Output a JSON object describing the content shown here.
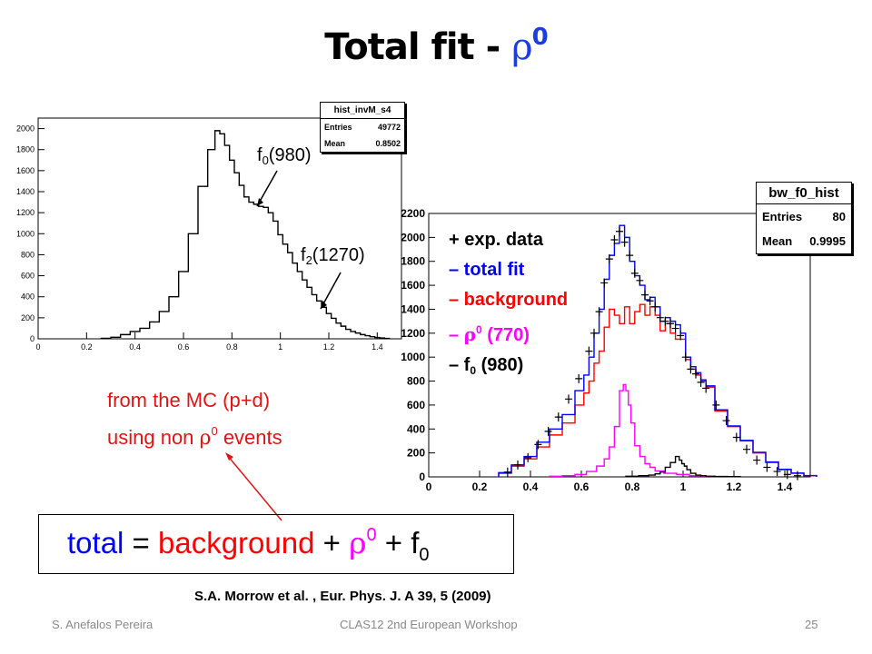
{
  "slide": {
    "title_text": "Total fit - ",
    "title_symbol": "ρ",
    "title_sup": "0",
    "slide_number": "25",
    "footer_left": "S. Anefalos Pereira",
    "footer_center": "CLAS12 2nd European Workshop",
    "citation": "S.A. Morrow et al. , Eur. Phys. J. A 39, 5 (2009)",
    "colors": {
      "title_rho": "#1a3ee0",
      "note_red": "#e01414",
      "total_blue": "#0000ff",
      "background_red": "#ff0000",
      "rho_magenta": "#ff00ff"
    }
  },
  "left_plot": {
    "statbox": {
      "name": "hist_invM_s4",
      "entries_label": "Entries",
      "entries": "49772",
      "mean_label": "Mean",
      "mean": "0.8502"
    },
    "annotations": {
      "f0_base": "f",
      "f0_sub": "0",
      "f0_mass": "(980)",
      "f2_base": "f",
      "f2_sub": "2",
      "f2_mass": "(1270)"
    }
  },
  "right_plot": {
    "statbox": {
      "name": "bw_f0_hist",
      "entries_label": "Entries",
      "entries": "80",
      "mean_label": "Mean",
      "mean": "0.9995"
    },
    "legend": {
      "exp_data": "+ exp. data",
      "total_fit": "– total fit",
      "background": "– background",
      "rho_dash": "– ",
      "rho_symbol": "ρ",
      "rho_sup": "0",
      "rho_mass": " (770)",
      "f0_dash": "– f",
      "f0_sub": "0",
      "f0_mass": " (980)"
    }
  },
  "mc_note": {
    "line1": "from the MC (p+d)",
    "line2_pre": "using non ",
    "line2_symbol": "ρ",
    "line2_sup": "0",
    "line2_post": " events"
  },
  "equation": {
    "total": "total",
    "eq": " = ",
    "background": "background",
    "plus1": " + ",
    "rho": "ρ",
    "rho_sup": "0",
    "plus2": " + f",
    "f0_sub": "0"
  },
  "chart_data": [
    {
      "type": "line",
      "step": true,
      "x_range": [
        0,
        1.5
      ],
      "ylim": [
        0,
        2100
      ],
      "x_ticks": [
        "0",
        "0.2",
        "0.4",
        "0.6",
        "0.8",
        "1",
        "1.2",
        "1.4"
      ],
      "y_ticks": [
        "0",
        "200",
        "400",
        "600",
        "800",
        "1000",
        "1200",
        "1400",
        "1600",
        "1800",
        "2000"
      ],
      "series": [
        {
          "color": "#000000",
          "x": [
            0.28,
            0.32,
            0.36,
            0.4,
            0.44,
            0.48,
            0.52,
            0.56,
            0.6,
            0.64,
            0.68,
            0.72,
            0.74,
            0.76,
            0.78,
            0.8,
            0.82,
            0.84,
            0.86,
            0.88,
            0.9,
            0.92,
            0.94,
            0.96,
            0.98,
            1.0,
            1.02,
            1.04,
            1.06,
            1.08,
            1.1,
            1.12,
            1.14,
            1.16,
            1.18,
            1.2,
            1.22,
            1.24,
            1.26,
            1.28,
            1.3,
            1.32,
            1.34,
            1.36,
            1.38,
            1.4,
            1.42,
            1.44
          ],
          "values": [
            5,
            15,
            40,
            70,
            100,
            160,
            260,
            400,
            640,
            1000,
            1450,
            1800,
            1980,
            1950,
            1840,
            1700,
            1580,
            1460,
            1350,
            1300,
            1280,
            1260,
            1250,
            1200,
            1120,
            990,
            900,
            820,
            720,
            640,
            560,
            490,
            420,
            360,
            300,
            240,
            195,
            150,
            120,
            90,
            70,
            55,
            40,
            30,
            20,
            12,
            8,
            4
          ]
        }
      ]
    },
    {
      "type": "line",
      "step": true,
      "x_range": [
        0,
        1.5
      ],
      "ylim": [
        0,
        2200
      ],
      "x_ticks": [
        "0",
        "0.2",
        "0.4",
        "0.6",
        "0.8",
        "1",
        "1.2",
        "1.4"
      ],
      "y_ticks": [
        "0",
        "200",
        "400",
        "600",
        "800",
        "1000",
        "1200",
        "1400",
        "1600",
        "1800",
        "2000",
        "2200"
      ],
      "series": [
        {
          "name": "background",
          "color": "#ff0000",
          "x": [
            0.3,
            0.35,
            0.4,
            0.45,
            0.5,
            0.55,
            0.6,
            0.62,
            0.64,
            0.66,
            0.68,
            0.7,
            0.72,
            0.74,
            0.76,
            0.78,
            0.8,
            0.82,
            0.84,
            0.86,
            0.88,
            0.9,
            0.92,
            0.94,
            0.96,
            0.98,
            1.0,
            1.02,
            1.04,
            1.06,
            1.08,
            1.1,
            1.15,
            1.2,
            1.25,
            1.3,
            1.35,
            1.4,
            1.45,
            1.5
          ],
          "values": [
            30,
            90,
            150,
            250,
            350,
            450,
            600,
            700,
            800,
            950,
            1050,
            1250,
            1400,
            1350,
            1280,
            1420,
            1280,
            1380,
            1440,
            1350,
            1420,
            1350,
            1220,
            1280,
            1200,
            1150,
            1150,
            980,
            900,
            850,
            800,
            750,
            550,
            420,
            300,
            200,
            120,
            60,
            30,
            10
          ]
        },
        {
          "name": "ρ0 (770)",
          "color": "#ff00ff",
          "x": [
            0.5,
            0.55,
            0.6,
            0.64,
            0.68,
            0.7,
            0.72,
            0.74,
            0.76,
            0.77,
            0.78,
            0.79,
            0.8,
            0.82,
            0.84,
            0.86,
            0.88,
            0.9,
            0.95,
            1.0,
            1.05,
            1.1
          ],
          "values": [
            5,
            10,
            20,
            45,
            90,
            150,
            250,
            420,
            720,
            770,
            720,
            600,
            450,
            260,
            170,
            110,
            80,
            50,
            30,
            20,
            10,
            5
          ]
        },
        {
          "name": "f0 (980)",
          "color": "#000000",
          "x": [
            0.8,
            0.85,
            0.88,
            0.9,
            0.92,
            0.94,
            0.96,
            0.98,
            0.99,
            1.0,
            1.01,
            1.02,
            1.04,
            1.06,
            1.08,
            1.1,
            1.15,
            1.2
          ],
          "values": [
            5,
            10,
            15,
            25,
            40,
            80,
            120,
            170,
            140,
            110,
            90,
            60,
            30,
            15,
            10,
            5,
            3,
            2
          ]
        },
        {
          "name": "total fit",
          "color": "#0000ff",
          "x": [
            0.3,
            0.35,
            0.4,
            0.45,
            0.5,
            0.55,
            0.6,
            0.62,
            0.64,
            0.66,
            0.68,
            0.7,
            0.72,
            0.74,
            0.76,
            0.78,
            0.8,
            0.82,
            0.84,
            0.86,
            0.88,
            0.9,
            0.92,
            0.94,
            0.96,
            0.98,
            1.0,
            1.02,
            1.04,
            1.06,
            1.08,
            1.1,
            1.15,
            1.2,
            1.25,
            1.3,
            1.35,
            1.4,
            1.45,
            1.5
          ],
          "values": [
            35,
            100,
            170,
            290,
            400,
            520,
            720,
            850,
            1000,
            1200,
            1400,
            1650,
            1850,
            1950,
            2100,
            2000,
            1800,
            1680,
            1600,
            1480,
            1500,
            1420,
            1300,
            1330,
            1300,
            1270,
            1200,
            1000,
            920,
            870,
            810,
            760,
            560,
            425,
            305,
            205,
            125,
            63,
            32,
            11
          ]
        },
        {
          "name": "exp. data",
          "color": "#000000",
          "marker": "+",
          "x": [
            0.31,
            0.35,
            0.39,
            0.43,
            0.47,
            0.51,
            0.55,
            0.59,
            0.63,
            0.65,
            0.67,
            0.69,
            0.71,
            0.73,
            0.75,
            0.77,
            0.79,
            0.81,
            0.83,
            0.85,
            0.87,
            0.89,
            0.91,
            0.93,
            0.95,
            0.97,
            0.99,
            1.01,
            1.03,
            1.05,
            1.07,
            1.09,
            1.13,
            1.17,
            1.21,
            1.25,
            1.29,
            1.33,
            1.37,
            1.41,
            1.45
          ],
          "values": [
            40,
            100,
            160,
            270,
            380,
            500,
            650,
            820,
            1050,
            1200,
            1380,
            1620,
            1820,
            1980,
            2050,
            1960,
            1850,
            1700,
            1640,
            1520,
            1470,
            1420,
            1330,
            1300,
            1280,
            1240,
            1180,
            1000,
            900,
            860,
            790,
            740,
            600,
            470,
            330,
            230,
            140,
            80,
            45,
            20,
            10
          ]
        }
      ]
    }
  ]
}
